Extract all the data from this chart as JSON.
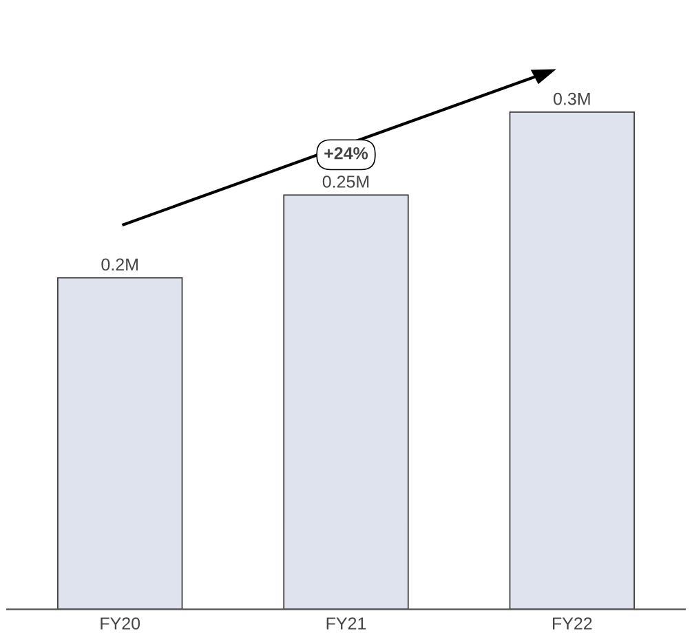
{
  "chart_data": {
    "type": "bar",
    "categories": [
      "FY20",
      "FY21",
      "FY22"
    ],
    "values": [
      0.2,
      0.25,
      0.3
    ],
    "value_labels": [
      "0.2M",
      "0.25M",
      "0.3M"
    ],
    "color": "#dee3ee",
    "annotations": [
      "+24%"
    ]
  }
}
